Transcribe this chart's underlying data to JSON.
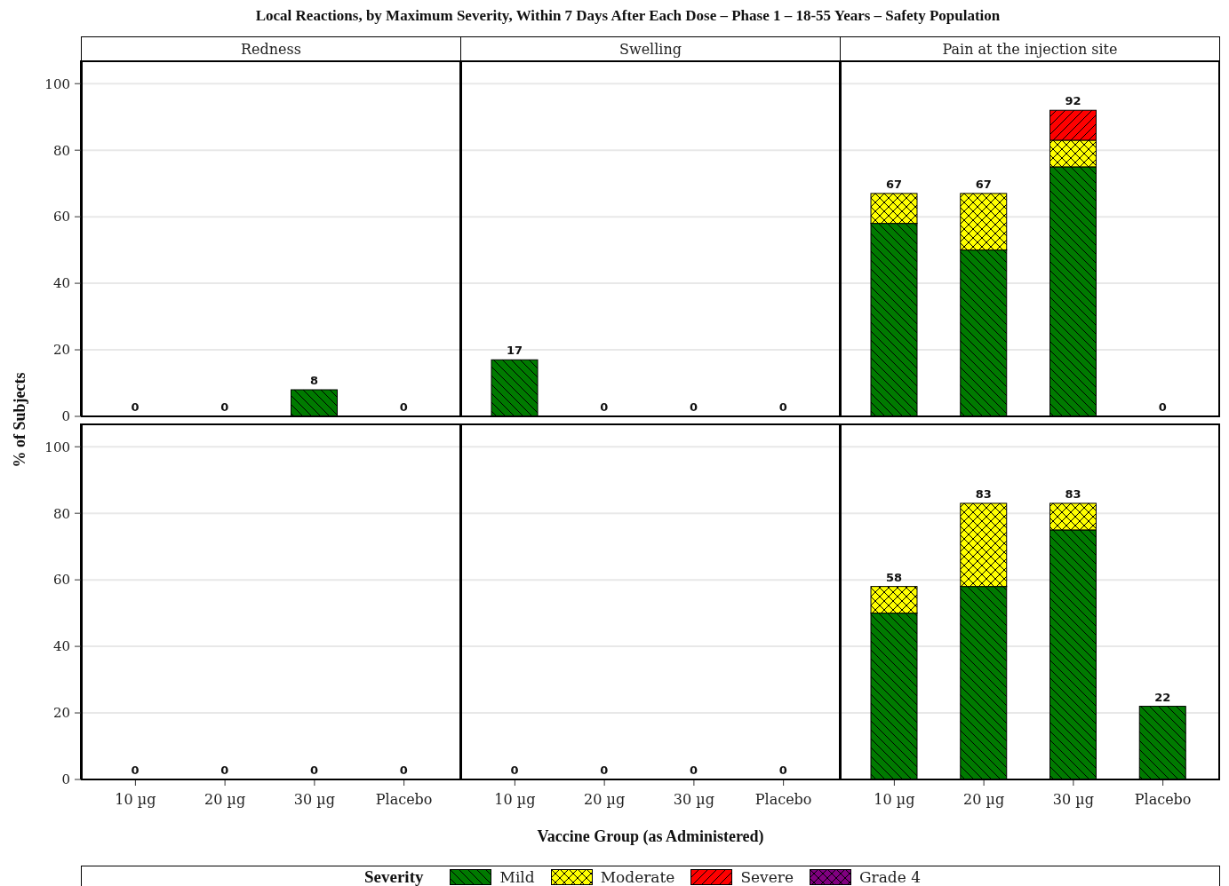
{
  "chart_data": [
    {
      "type": "bar",
      "stacked": true,
      "title": "Local Reactions, by Maximum Severity, Within 7 Days After Each Dose – Phase 1 – 18-55 Years – Safety Population",
      "subtitle": "Redness",
      "ylabel": "% of Subjects",
      "legend": "bottom",
      "legend_title": "Severity",
      "categories": [
        "10 µg",
        "20 µg",
        "30 µg",
        "Placebo"
      ],
      "series": [
        {
          "name": "Mild",
          "color": "#007a00",
          "values": [
            0,
            0,
            8,
            0
          ]
        },
        {
          "name": "Moderate",
          "color": "#ffff00",
          "values": [
            0,
            0,
            0,
            0
          ]
        },
        {
          "name": "Severe",
          "color": "#ff0000",
          "values": [
            0,
            0,
            0,
            0
          ]
        },
        {
          "name": "Grade 4",
          "color": "#800080",
          "values": [
            0,
            0,
            0,
            0
          ]
        }
      ],
      "totals": [
        "0",
        "0",
        "8",
        "0"
      ],
      "ylim": [
        0,
        107
      ],
      "yticks": [
        0,
        20,
        40,
        60,
        80,
        100
      ],
      "grid": "y",
      "tick_labels": "y"
    },
    {
      "type": "bar",
      "stacked": true,
      "subtitle": "Swelling",
      "categories": [
        "10 µg",
        "20 µg",
        "30 µg",
        "Placebo"
      ],
      "series": [
        {
          "color": "#007a00",
          "values": [
            17,
            0,
            0,
            0
          ]
        },
        {
          "color": "#ffff00",
          "values": [
            0,
            0,
            0,
            0
          ]
        },
        {
          "color": "#ff0000",
          "values": [
            0,
            0,
            0,
            0
          ]
        },
        {
          "color": "#800080",
          "values": [
            0,
            0,
            0,
            0
          ]
        }
      ],
      "totals": [
        "17",
        "0",
        "0",
        "0"
      ],
      "ylim": [
        0,
        107
      ],
      "yticks": [
        0,
        20,
        40,
        60,
        80,
        100
      ],
      "grid": "y",
      "tick_labels": false
    },
    {
      "type": "bar",
      "stacked": true,
      "subtitle": "Pain at the injection site",
      "categories": [
        "10 µg",
        "20 µg",
        "30 µg",
        "Placebo"
      ],
      "series": [
        {
          "color": "#007a00",
          "values": [
            58,
            50,
            75,
            0
          ]
        },
        {
          "color": "#ffff00",
          "values": [
            9,
            17,
            8,
            0
          ]
        },
        {
          "color": "#ff0000",
          "values": [
            0,
            0,
            9,
            0
          ]
        },
        {
          "color": "#800080",
          "values": [
            0,
            0,
            0,
            0
          ]
        }
      ],
      "totals": [
        "67",
        "67",
        "92",
        "0"
      ],
      "ylim": [
        0,
        107
      ],
      "yticks": [
        0,
        20,
        40,
        60,
        80,
        100
      ],
      "grid": "y",
      "tick_labels": false
    },
    {
      "type": "bar",
      "stacked": true,
      "categories": [
        "10 µg",
        "20 µg",
        "30 µg",
        "Placebo"
      ],
      "series": [
        {
          "color": "#007a00",
          "values": [
            0,
            0,
            0,
            0
          ]
        },
        {
          "color": "#ffff00",
          "values": [
            0,
            0,
            0,
            0
          ]
        },
        {
          "color": "#ff0000",
          "values": [
            0,
            0,
            0,
            0
          ]
        },
        {
          "color": "#800080",
          "values": [
            0,
            0,
            0,
            0
          ]
        }
      ],
      "totals": [
        "0",
        "0",
        "0",
        "0"
      ],
      "ylim": [
        0,
        107
      ],
      "yticks": [
        0,
        20,
        40,
        60,
        80,
        100
      ],
      "grid": "y"
    },
    {
      "type": "bar",
      "stacked": true,
      "xlabel": "Vaccine Group (as Administered)",
      "categories": [
        "10 µg",
        "20 µg",
        "30 µg",
        "Placebo"
      ],
      "series": [
        {
          "color": "#007a00",
          "values": [
            0,
            0,
            0,
            0
          ]
        },
        {
          "color": "#ffff00",
          "values": [
            0,
            0,
            0,
            0
          ]
        },
        {
          "color": "#ff0000",
          "values": [
            0,
            0,
            0,
            0
          ]
        },
        {
          "color": "#800080",
          "values": [
            0,
            0,
            0,
            0
          ]
        }
      ],
      "totals": [
        "0",
        "0",
        "0",
        "0"
      ],
      "ylim": [
        0,
        107
      ],
      "yticks": [
        0,
        20,
        40,
        60,
        80,
        100
      ],
      "grid": "y",
      "tick_labels": "x"
    },
    {
      "type": "bar",
      "stacked": true,
      "categories": [
        "10 µg",
        "20 µg",
        "30 µg",
        "Placebo"
      ],
      "series": [
        {
          "color": "#007a00",
          "values": [
            50,
            58,
            75,
            22
          ]
        },
        {
          "color": "#ffff00",
          "values": [
            8,
            25,
            8,
            0
          ]
        },
        {
          "color": "#ff0000",
          "values": [
            0,
            0,
            0,
            0
          ]
        },
        {
          "color": "#800080",
          "values": [
            0,
            0,
            0,
            0
          ]
        }
      ],
      "totals": [
        "58",
        "83",
        "83",
        "22"
      ],
      "ylim": [
        0,
        107
      ],
      "yticks": [
        0,
        20,
        40,
        60,
        80,
        100
      ],
      "grid": "y",
      "tick_labels": "x"
    }
  ]
}
